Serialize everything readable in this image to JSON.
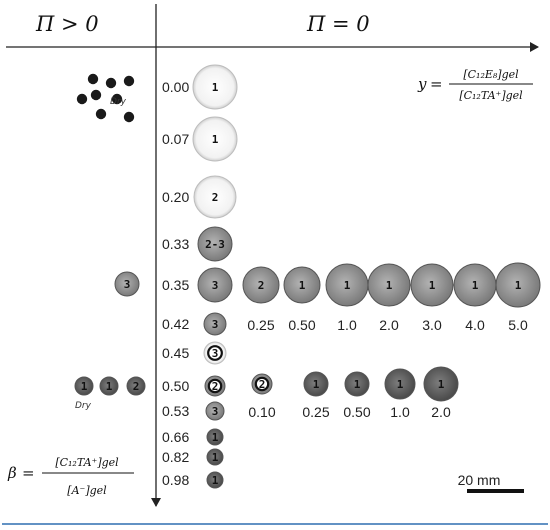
{
  "headers": {
    "pi_positive": "Π > 0",
    "pi_zero": "Π = 0"
  },
  "y_eq": {
    "lhs": "y",
    "num": "[C₁₂E₈]gel",
    "den": "[C₁₂TA⁺]gel"
  },
  "beta_eq": {
    "lhs": "β",
    "num": "[C₁₂TA⁺]gel",
    "den": "[A⁻]gel"
  },
  "dry_labels": [
    "Dry",
    "Dry"
  ],
  "beta_values": [
    "0.00",
    "0.07",
    "0.20",
    "0.33",
    "0.35",
    "0.42",
    "0.45",
    "0.50",
    "0.53",
    "0.66",
    "0.82",
    "0.98"
  ],
  "beta_gel_marks": [
    "1",
    "1",
    "2",
    "2-3",
    "3",
    "3",
    "3",
    "2",
    "3",
    "1",
    "1",
    "1"
  ],
  "row_035_y_values": [
    "0.25",
    "0.50",
    "1.0",
    "2.0",
    "3.0",
    "4.0",
    "5.0"
  ],
  "row_035_marks": [
    "2",
    "1",
    "1",
    "1",
    "1",
    "1",
    "1"
  ],
  "row_050_y_values": [
    "0.10",
    "0.25",
    "0.50",
    "1.0",
    "2.0"
  ],
  "row_050_marks": [
    "2",
    "1",
    "1",
    "1",
    "1"
  ],
  "pi_pos_marks": {
    "row_035": "3",
    "row_050": [
      "1",
      "1",
      "2"
    ]
  },
  "scale_bar": {
    "label": "20 mm"
  }
}
